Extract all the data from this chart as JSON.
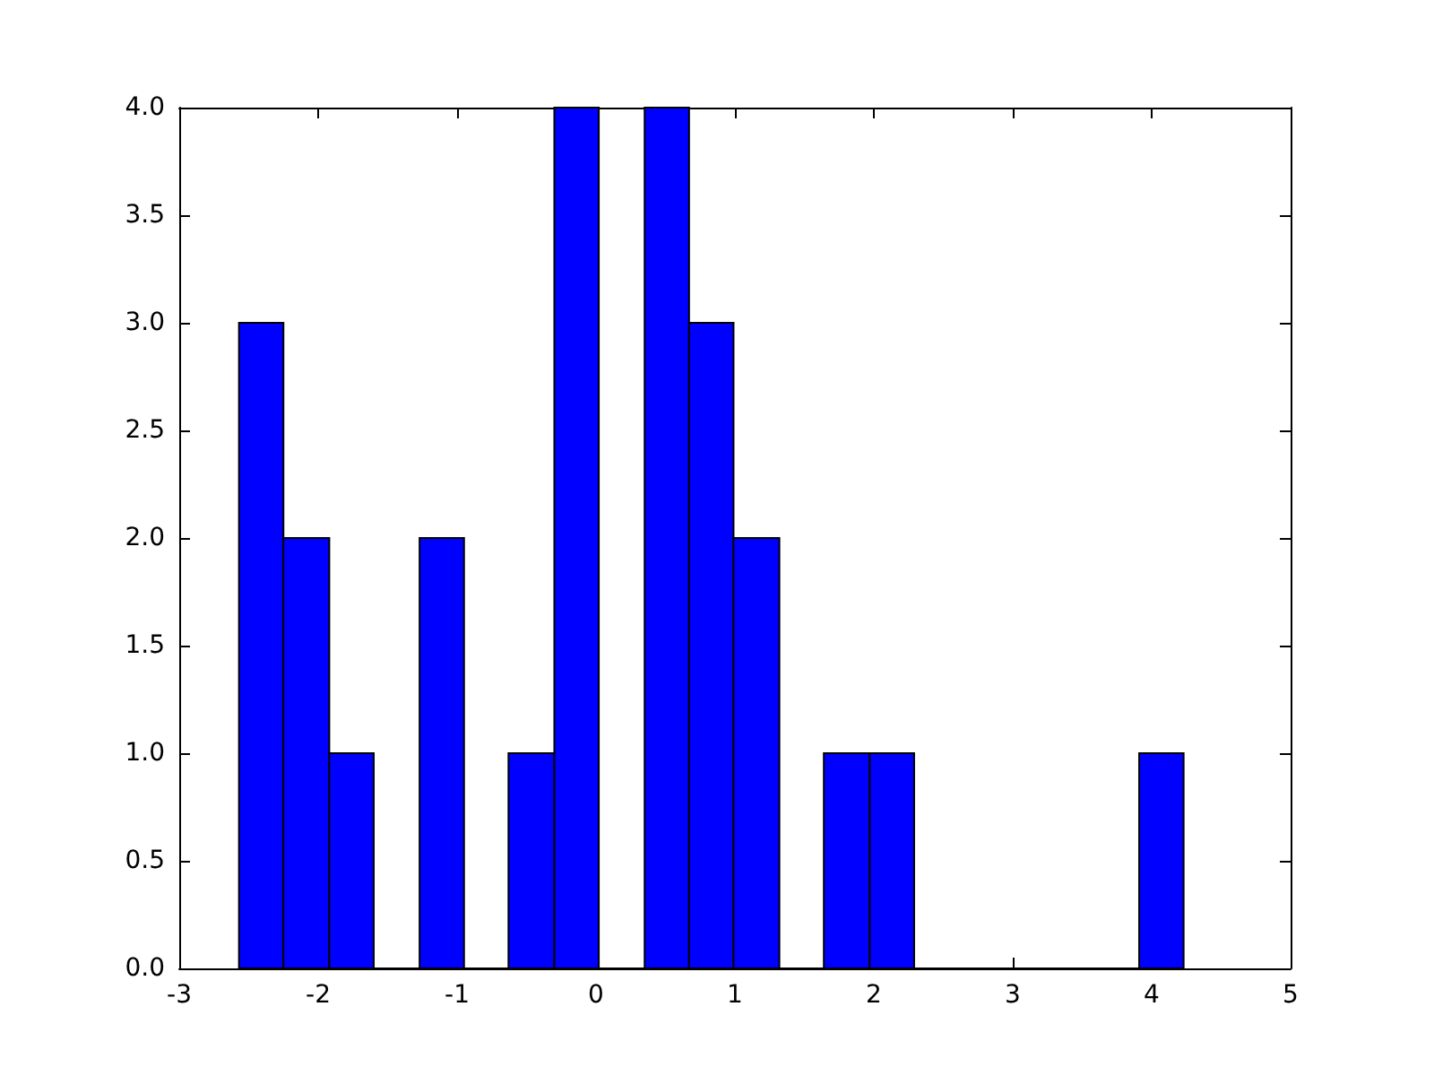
{
  "chart_data": {
    "type": "histogram",
    "color": "#0000ff",
    "bins": [
      -2.57,
      -2.25,
      -1.92,
      -1.6,
      -1.27,
      -0.95,
      -0.63,
      -0.3,
      0.02,
      0.35,
      0.67,
      0.99,
      1.32,
      1.64,
      1.97,
      2.29,
      3.91,
      4.23
    ],
    "values": [
      3,
      2,
      1,
      0,
      2,
      0,
      1,
      4,
      0,
      4,
      3,
      2,
      0,
      1,
      1,
      0,
      1
    ],
    "xlim": [
      -3,
      5
    ],
    "xticks": [
      -3,
      -2,
      -1,
      0,
      1,
      2,
      3,
      4,
      5
    ],
    "ylim": [
      0,
      4
    ],
    "yticks": [
      {
        "value": 0,
        "label": "0.0"
      },
      {
        "value": 0.5,
        "label": "0.5"
      },
      {
        "value": 1,
        "label": "1.0"
      },
      {
        "value": 1.5,
        "label": "1.5"
      },
      {
        "value": 2,
        "label": "2.0"
      },
      {
        "value": 2.5,
        "label": "2.5"
      },
      {
        "value": 3,
        "label": "3.0"
      },
      {
        "value": 3.5,
        "label": "3.5"
      },
      {
        "value": 4,
        "label": "4.0"
      }
    ],
    "grid": false
  }
}
